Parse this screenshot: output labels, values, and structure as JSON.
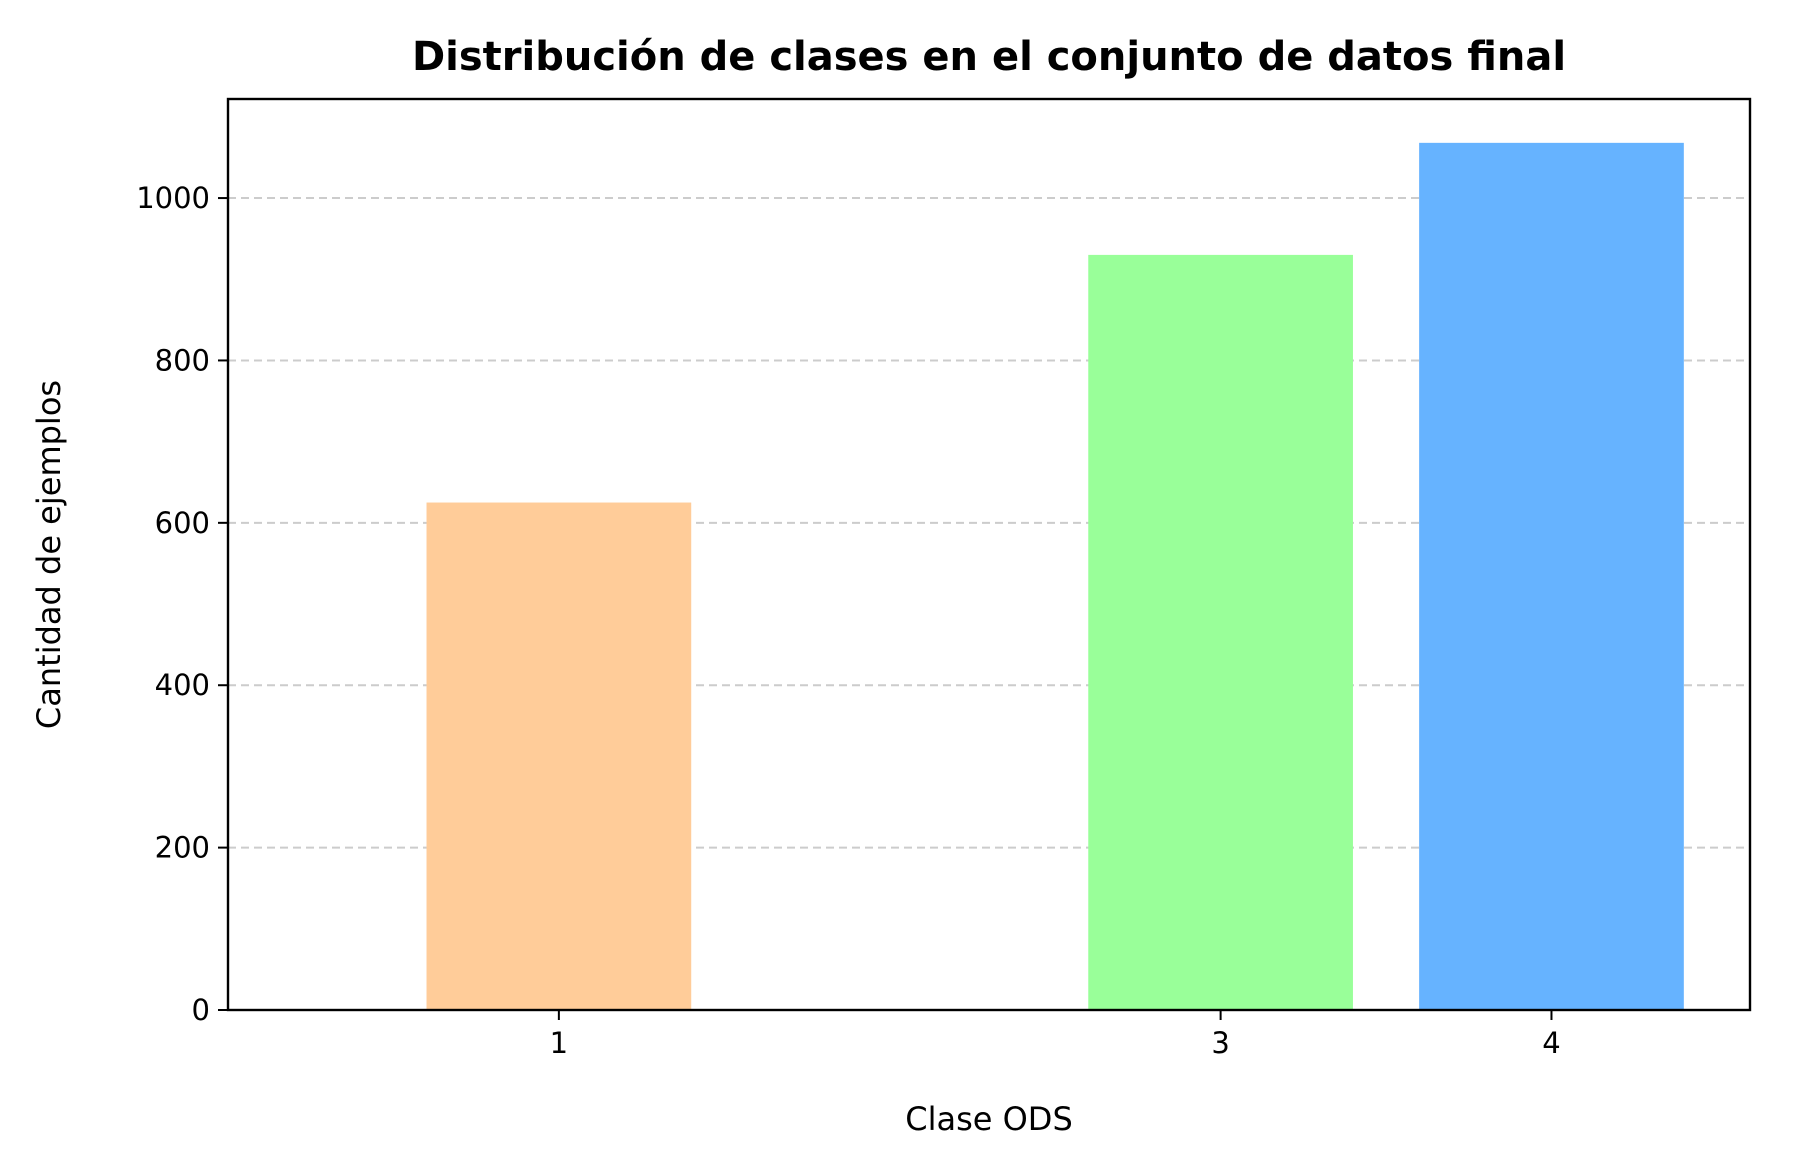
{
  "chart_data": {
    "type": "bar",
    "title": "Distribución de clases en el conjunto de datos final",
    "xlabel": "Clase ODS",
    "ylabel": "Cantidad de ejemplos",
    "x": [
      1,
      3,
      4
    ],
    "values": [
      625,
      930,
      1068
    ],
    "colors": [
      "#ffcc99",
      "#99ff99",
      "#66b3ff"
    ],
    "xticks": [
      "1",
      "3",
      "4"
    ],
    "yticks": [
      0,
      200,
      400,
      600,
      800,
      1000
    ],
    "xlim": [
      0.0,
      4.6
    ],
    "ylim": [
      0,
      1122
    ],
    "grid": "y-dashed",
    "legend": "none"
  }
}
